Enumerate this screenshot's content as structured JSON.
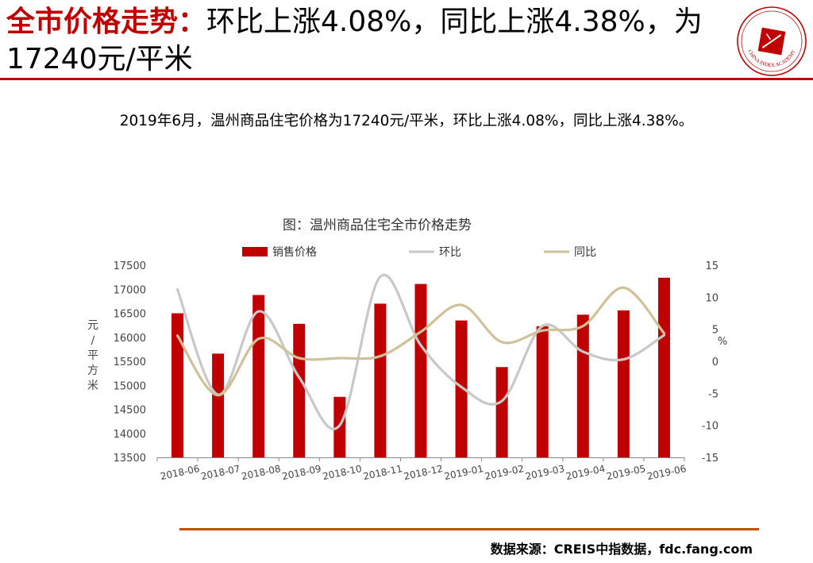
{
  "header": {
    "title_red": "全市价格走势：",
    "title_black": "环比上涨4.08%，同比上涨4.38%，为17240元/平米"
  },
  "logo": {
    "icon": "china-index-academy-seal-icon",
    "text": "CHINA INDEX ACADEMY",
    "color": "#c00000"
  },
  "summary": "2019年6月，温州商品住宅价格为17240元/平米，环比上涨4.08%，同比上涨4.38%。",
  "source": "数据来源：CREIS中指数据，fdc.fang.com",
  "chart_data": {
    "type": "bar",
    "title": "图：温州商品住宅全市价格走势",
    "categories": [
      "2018-06",
      "2018-07",
      "2018-08",
      "2018-09",
      "2018-10",
      "2018-11",
      "2018-12",
      "2019-01",
      "2019-02",
      "2019-03",
      "2019-04",
      "2019-05",
      "2019-06"
    ],
    "ylabel": "元/平方米",
    "y2label": "%",
    "ylim": [
      13500,
      17500
    ],
    "yticks": [
      13500,
      14000,
      14500,
      15000,
      15500,
      16000,
      16500,
      17000,
      17500
    ],
    "y2lim": [
      -15,
      15
    ],
    "y2ticks": [
      -15,
      -10,
      -5,
      0,
      5,
      10,
      15
    ],
    "legend_position": "top",
    "grid": false,
    "series": [
      {
        "name": "销售价格",
        "kind": "bar",
        "axis": "left",
        "color": "#c00000",
        "values": [
          16500,
          15660,
          16880,
          16280,
          14760,
          16700,
          17110,
          16350,
          15380,
          16230,
          16470,
          16560,
          17240
        ]
      },
      {
        "name": "环比",
        "kind": "line",
        "axis": "right",
        "color": "#c8c8c8",
        "values": [
          11.2,
          -5.2,
          7.8,
          -2.5,
          -10.0,
          13.2,
          2.5,
          -4.0,
          -6.2,
          5.5,
          1.5,
          0.3,
          4.08
        ]
      },
      {
        "name": "同比",
        "kind": "line",
        "axis": "right",
        "color": "#cfc29a",
        "values": [
          4.0,
          -5.3,
          3.5,
          0.5,
          0.5,
          0.8,
          4.6,
          8.8,
          3.0,
          4.8,
          5.5,
          11.5,
          4.38
        ]
      }
    ]
  }
}
